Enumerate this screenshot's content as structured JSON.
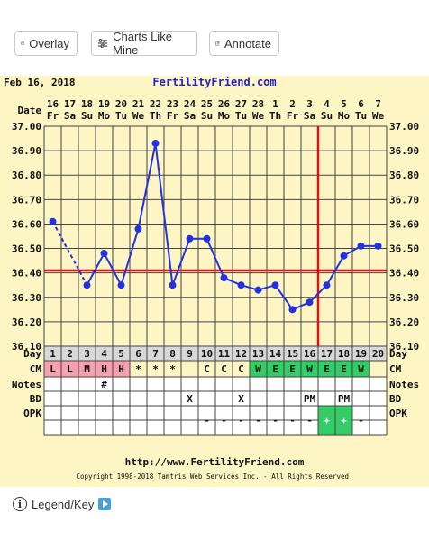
{
  "toolbar": {
    "overlay_label": "Overlay",
    "charts_like_mine_label": "Charts Like Mine",
    "annotate_label": "Annotate"
  },
  "chart_header": {
    "date": "Feb 16, 2018",
    "site": "FertilityFriend.com"
  },
  "chart_footer": {
    "url": "http://www.FertilityFriend.com",
    "copyright": "Copyright 1998-2018 Tamtris Web Services Inc. - All Rights Reserved."
  },
  "legend": {
    "label": "Legend/Key"
  },
  "colors": {
    "background": "#fdf5c4",
    "grid": "#444444",
    "temp_line": "#2233dd",
    "coverline": "#dd1111",
    "site_text": "#2222cc",
    "cm_pink": "#f7a0b0",
    "cm_green": "#33cc66"
  },
  "chart_data": {
    "type": "line",
    "row_labels": {
      "date": "Date",
      "day": "Day",
      "cm": "CM",
      "notes": "Notes",
      "bd": "BD",
      "opk": "OPK"
    },
    "dates": [
      "16",
      "17",
      "18",
      "19",
      "20",
      "21",
      "22",
      "23",
      "24",
      "25",
      "26",
      "27",
      "28",
      "1",
      "2",
      "3",
      "4",
      "5",
      "6",
      "7"
    ],
    "weekdays": [
      "Fr",
      "Sa",
      "Su",
      "Mo",
      "Tu",
      "We",
      "Th",
      "Fr",
      "Sa",
      "Su",
      "Mo",
      "Tu",
      "We",
      "Th",
      "Fr",
      "Sa",
      "Su",
      "Mo",
      "Tu",
      "We"
    ],
    "days": [
      "1",
      "2",
      "3",
      "4",
      "5",
      "6",
      "7",
      "8",
      "9",
      "10",
      "11",
      "12",
      "13",
      "14",
      "15",
      "16",
      "17",
      "18",
      "19",
      "20"
    ],
    "ylim": [
      36.1,
      37.0
    ],
    "yticks": [
      "37.00",
      "36.90",
      "36.80",
      "36.70",
      "36.60",
      "36.50",
      "36.40",
      "36.30",
      "36.20",
      "36.10"
    ],
    "temps": [
      36.61,
      null,
      36.35,
      36.48,
      36.35,
      36.58,
      36.93,
      36.35,
      36.54,
      36.54,
      36.38,
      36.35,
      36.33,
      36.35,
      36.25,
      36.28,
      36.35,
      36.47,
      36.51,
      36.51
    ],
    "dashed_segments": [
      [
        0,
        2
      ]
    ],
    "coverline": 36.41,
    "ovulation_day": 17,
    "cm": [
      "L",
      "L",
      "M",
      "H",
      "H",
      "*",
      "*",
      "*",
      "",
      "C",
      "C",
      "C",
      "W",
      "E",
      "E",
      "W",
      "E",
      "E",
      "W",
      ""
    ],
    "cm_colors": [
      "pink",
      "pink",
      "pink",
      "pink",
      "pink",
      "",
      "",
      "",
      "",
      "",
      "",
      "",
      "green",
      "green",
      "green",
      "green",
      "green",
      "green",
      "green",
      ""
    ],
    "notes": [
      "",
      "",
      "",
      "#",
      "",
      "",
      "",
      "",
      "",
      "",
      "",
      "",
      "",
      "",
      "",
      "",
      "",
      "",
      "",
      ""
    ],
    "bd": [
      "",
      "",
      "",
      "",
      "",
      "",
      "",
      "",
      "X",
      "",
      "",
      "X",
      "",
      "",
      "",
      "PM",
      "",
      "PM",
      "",
      ""
    ],
    "opk": [
      "",
      "",
      "",
      "",
      "",
      "",
      "",
      "",
      "",
      "-",
      "-",
      "-",
      "-",
      "-",
      "-",
      "-",
      "+",
      "+",
      "-",
      ""
    ],
    "opk_colors": [
      "",
      "",
      "",
      "",
      "",
      "",
      "",
      "",
      "",
      "",
      "",
      "",
      "",
      "",
      "",
      "",
      "green",
      "green",
      "",
      ""
    ]
  }
}
